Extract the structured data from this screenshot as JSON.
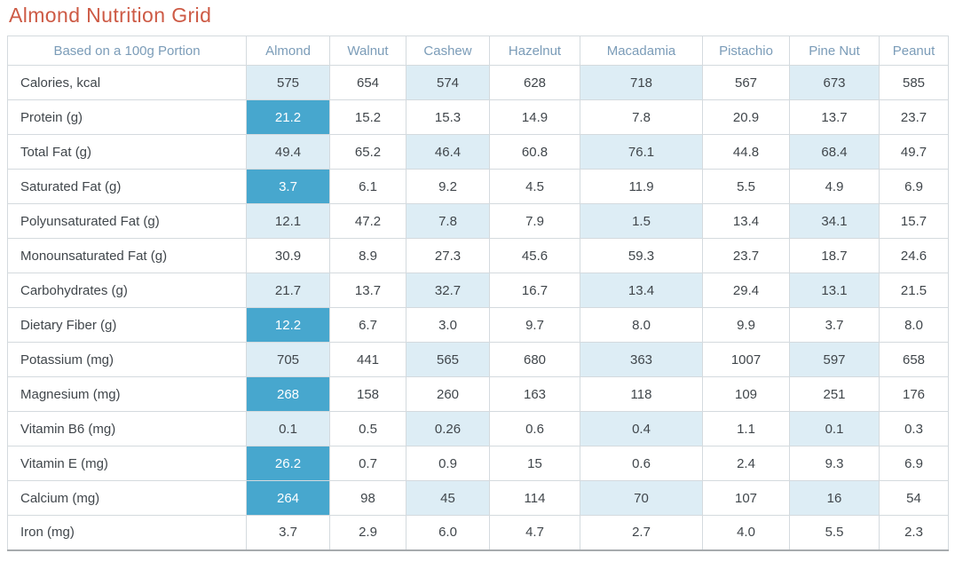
{
  "page": {
    "title": "Almond Nutrition Grid"
  },
  "colors": {
    "title": "#cd5a45",
    "header_text": "#7b9cb8",
    "highlight_strong_bg": "#47a7ce",
    "highlight_strong_text": "#ffffff",
    "highlight_soft_bg": "#ddedf5",
    "body_text": "#40464b",
    "border": "#d4dade"
  },
  "chart_data": {
    "type": "table",
    "title": "Almond Nutrition Grid",
    "corner_label": "Based on a 100g Portion",
    "columns": [
      "Almond",
      "Walnut",
      "Cashew",
      "Hazelnut",
      "Macadamia",
      "Pistachio",
      "Pine Nut",
      "Peanut"
    ],
    "rows": [
      {
        "label": "Calories, kcal",
        "values": [
          "575",
          "654",
          "574",
          "628",
          "718",
          "567",
          "673",
          "585"
        ],
        "emphasis": [
          "soft",
          "none",
          "soft",
          "none",
          "soft",
          "none",
          "soft",
          "none"
        ]
      },
      {
        "label": "Protein (g)",
        "values": [
          "21.2",
          "15.2",
          "15.3",
          "14.9",
          "7.8",
          "20.9",
          "13.7",
          "23.7"
        ],
        "emphasis": [
          "strong",
          "none",
          "none",
          "none",
          "none",
          "none",
          "none",
          "none"
        ]
      },
      {
        "label": "Total Fat (g)",
        "values": [
          "49.4",
          "65.2",
          "46.4",
          "60.8",
          "76.1",
          "44.8",
          "68.4",
          "49.7"
        ],
        "emphasis": [
          "soft",
          "none",
          "soft",
          "none",
          "soft",
          "none",
          "soft",
          "none"
        ]
      },
      {
        "label": "Saturated Fat (g)",
        "values": [
          "3.7",
          "6.1",
          "9.2",
          "4.5",
          "11.9",
          "5.5",
          "4.9",
          "6.9"
        ],
        "emphasis": [
          "strong",
          "none",
          "none",
          "none",
          "none",
          "none",
          "none",
          "none"
        ]
      },
      {
        "label": "Polyunsaturated Fat (g)",
        "values": [
          "12.1",
          "47.2",
          "7.8",
          "7.9",
          "1.5",
          "13.4",
          "34.1",
          "15.7"
        ],
        "emphasis": [
          "soft",
          "none",
          "soft",
          "none",
          "soft",
          "none",
          "soft",
          "none"
        ]
      },
      {
        "label": "Monounsaturated Fat (g)",
        "values": [
          "30.9",
          "8.9",
          "27.3",
          "45.6",
          "59.3",
          "23.7",
          "18.7",
          "24.6"
        ],
        "emphasis": [
          "none",
          "none",
          "none",
          "none",
          "none",
          "none",
          "none",
          "none"
        ]
      },
      {
        "label": "Carbohydrates (g)",
        "values": [
          "21.7",
          "13.7",
          "32.7",
          "16.7",
          "13.4",
          "29.4",
          "13.1",
          "21.5"
        ],
        "emphasis": [
          "soft",
          "none",
          "soft",
          "none",
          "soft",
          "none",
          "soft",
          "none"
        ]
      },
      {
        "label": "Dietary Fiber (g)",
        "values": [
          "12.2",
          "6.7",
          "3.0",
          "9.7",
          "8.0",
          "9.9",
          "3.7",
          "8.0"
        ],
        "emphasis": [
          "strong",
          "none",
          "none",
          "none",
          "none",
          "none",
          "none",
          "none"
        ]
      },
      {
        "label": "Potassium (mg)",
        "values": [
          "705",
          "441",
          "565",
          "680",
          "363",
          "1007",
          "597",
          "658"
        ],
        "emphasis": [
          "soft",
          "none",
          "soft",
          "none",
          "soft",
          "none",
          "soft",
          "none"
        ]
      },
      {
        "label": "Magnesium (mg)",
        "values": [
          "268",
          "158",
          "260",
          "163",
          "118",
          "109",
          "251",
          "176"
        ],
        "emphasis": [
          "strong",
          "none",
          "none",
          "none",
          "none",
          "none",
          "none",
          "none"
        ]
      },
      {
        "label": "Vitamin B6 (mg)",
        "values": [
          "0.1",
          "0.5",
          "0.26",
          "0.6",
          "0.4",
          "1.1",
          "0.1",
          "0.3"
        ],
        "emphasis": [
          "soft",
          "none",
          "soft",
          "none",
          "soft",
          "none",
          "soft",
          "none"
        ]
      },
      {
        "label": "Vitamin E (mg)",
        "values": [
          "26.2",
          "0.7",
          "0.9",
          "15",
          "0.6",
          "2.4",
          "9.3",
          "6.9"
        ],
        "emphasis": [
          "strong",
          "none",
          "none",
          "none",
          "none",
          "none",
          "none",
          "none"
        ]
      },
      {
        "label": "Calcium (mg)",
        "values": [
          "264",
          "98",
          "45",
          "114",
          "70",
          "107",
          "16",
          "54"
        ],
        "emphasis": [
          "strong",
          "none",
          "soft",
          "none",
          "soft",
          "none",
          "soft",
          "none"
        ]
      },
      {
        "label": "Iron (mg)",
        "values": [
          "3.7",
          "2.9",
          "6.0",
          "4.7",
          "2.7",
          "4.0",
          "5.5",
          "2.3"
        ],
        "emphasis": [
          "none",
          "none",
          "none",
          "none",
          "none",
          "none",
          "none",
          "none"
        ]
      }
    ]
  }
}
